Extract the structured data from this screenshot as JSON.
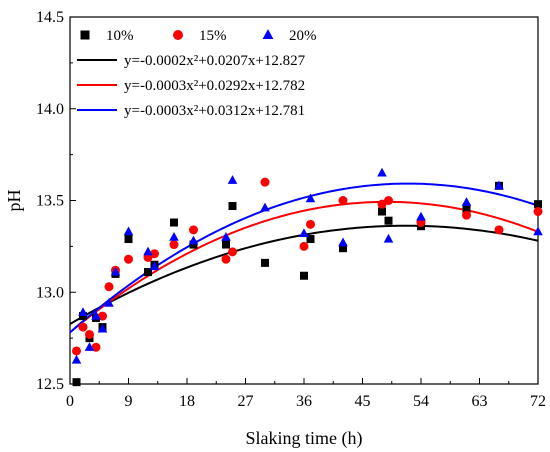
{
  "chart_data": {
    "type": "scatter",
    "xlabel": "Slaking time (h)",
    "ylabel": "pH",
    "xlim": [
      0,
      72
    ],
    "ylim": [
      12.5,
      14.5
    ],
    "xticks": [
      0,
      9,
      18,
      27,
      36,
      45,
      54,
      63,
      72
    ],
    "yticks": [
      12.5,
      13.0,
      13.5,
      14.0,
      14.5
    ],
    "grid": false,
    "legend_position": "top-left",
    "series": [
      {
        "name": "10%",
        "marker": "square",
        "color": "#000000",
        "points": [
          [
            1,
            12.51
          ],
          [
            2,
            12.87
          ],
          [
            3,
            12.75
          ],
          [
            4,
            12.86
          ],
          [
            5,
            12.81
          ],
          [
            7,
            13.1
          ],
          [
            9,
            13.29
          ],
          [
            12,
            13.11
          ],
          [
            13,
            13.15
          ],
          [
            16,
            13.38
          ],
          [
            19,
            13.26
          ],
          [
            24,
            13.26
          ],
          [
            25,
            13.47
          ],
          [
            30,
            13.16
          ],
          [
            36,
            13.09
          ],
          [
            37,
            13.29
          ],
          [
            42,
            13.24
          ],
          [
            48,
            13.44
          ],
          [
            49,
            13.39
          ],
          [
            54,
            13.36
          ],
          [
            61,
            13.45
          ],
          [
            66,
            13.58
          ],
          [
            72,
            13.48
          ]
        ]
      },
      {
        "name": "15%",
        "marker": "circle",
        "color": "#ff0000",
        "points": [
          [
            1,
            12.68
          ],
          [
            2,
            12.81
          ],
          [
            3,
            12.77
          ],
          [
            4,
            12.7
          ],
          [
            5,
            12.87
          ],
          [
            6,
            13.03
          ],
          [
            7,
            13.12
          ],
          [
            9,
            13.18
          ],
          [
            12,
            13.19
          ],
          [
            13,
            13.21
          ],
          [
            16,
            13.26
          ],
          [
            19,
            13.34
          ],
          [
            24,
            13.18
          ],
          [
            25,
            13.22
          ],
          [
            30,
            13.6
          ],
          [
            36,
            13.25
          ],
          [
            37,
            13.37
          ],
          [
            42,
            13.5
          ],
          [
            48,
            13.48
          ],
          [
            49,
            13.5
          ],
          [
            54,
            13.38
          ],
          [
            61,
            13.42
          ],
          [
            66,
            13.34
          ],
          [
            72,
            13.44
          ]
        ]
      },
      {
        "name": "20%",
        "marker": "triangle",
        "color": "#0000ff",
        "points": [
          [
            1,
            12.63
          ],
          [
            2,
            12.89
          ],
          [
            3,
            12.7
          ],
          [
            4,
            12.87
          ],
          [
            5,
            12.8
          ],
          [
            6,
            12.94
          ],
          [
            7,
            13.11
          ],
          [
            9,
            13.33
          ],
          [
            12,
            13.22
          ],
          [
            13,
            13.14
          ],
          [
            16,
            13.3
          ],
          [
            19,
            13.28
          ],
          [
            24,
            13.3
          ],
          [
            25,
            13.61
          ],
          [
            30,
            13.46
          ],
          [
            36,
            13.32
          ],
          [
            37,
            13.51
          ],
          [
            42,
            13.27
          ],
          [
            48,
            13.65
          ],
          [
            49,
            13.29
          ],
          [
            54,
            13.41
          ],
          [
            61,
            13.49
          ],
          [
            66,
            13.58
          ],
          [
            72,
            13.33
          ]
        ]
      }
    ],
    "fits": [
      {
        "equation": "y=-0.0002x²+0.0207x+12.827",
        "color": "#000000",
        "coefficients": [
          -0.0002,
          0.0207,
          12.827
        ]
      },
      {
        "equation": "y=-0.0003x²+0.0292x+12.782",
        "color": "#ff0000",
        "coefficients": [
          -0.0003,
          0.0292,
          12.782
        ]
      },
      {
        "equation": "y=-0.0003x²+0.0312x+12.781",
        "color": "#0000ff",
        "coefficients": [
          -0.0003,
          0.0312,
          12.781
        ]
      }
    ]
  }
}
